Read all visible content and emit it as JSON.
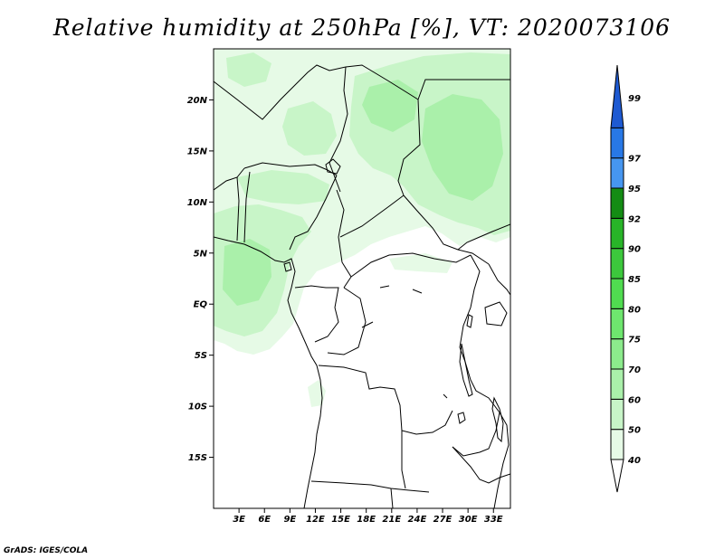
{
  "title": "Relative humidity at 250hPa [%], VT: 2020073106",
  "credit": "GrADS: IGES/COLA",
  "map": {
    "lon_range": [
      0,
      35
    ],
    "lat_range": [
      -20,
      25
    ],
    "lat_ticks": [
      {
        "value": 20,
        "label": "20N"
      },
      {
        "value": 15,
        "label": "15N"
      },
      {
        "value": 10,
        "label": "10N"
      },
      {
        "value": 5,
        "label": "5N"
      },
      {
        "value": 0,
        "label": "EQ"
      },
      {
        "value": -5,
        "label": "5S"
      },
      {
        "value": -10,
        "label": "10S"
      },
      {
        "value": -15,
        "label": "15S"
      }
    ],
    "lon_ticks": [
      {
        "value": 3,
        "label": "3E"
      },
      {
        "value": 6,
        "label": "6E"
      },
      {
        "value": 9,
        "label": "9E"
      },
      {
        "value": 12,
        "label": "12E"
      },
      {
        "value": 15,
        "label": "15E"
      },
      {
        "value": 18,
        "label": "18E"
      },
      {
        "value": 21,
        "label": "21E"
      },
      {
        "value": 24,
        "label": "24E"
      },
      {
        "value": 27,
        "label": "27E"
      },
      {
        "value": 30,
        "label": "30E"
      },
      {
        "value": 33,
        "label": "33E"
      }
    ]
  },
  "colorbar": {
    "levels": [
      {
        "label": "40",
        "color": "#e6fae6"
      },
      {
        "label": "50",
        "color": "#c8f5c8"
      },
      {
        "label": "60",
        "color": "#aaf0aa"
      },
      {
        "label": "70",
        "color": "#8ceb8c"
      },
      {
        "label": "75",
        "color": "#6ee66e"
      },
      {
        "label": "80",
        "color": "#50dc50"
      },
      {
        "label": "85",
        "color": "#3cc83c"
      },
      {
        "label": "90",
        "color": "#28b428"
      },
      {
        "label": "92",
        "color": "#148c14"
      },
      {
        "label": "95",
        "color": "#4696f0"
      },
      {
        "label": "97",
        "color": "#2878e6"
      },
      {
        "label": "99",
        "color": "#1e5ad2"
      }
    ]
  },
  "colors": {
    "humid_light": "#e6fae6",
    "humid_mid": "#c8f5c8",
    "humid_strong": "#aaf0aa",
    "border": "#000000"
  }
}
